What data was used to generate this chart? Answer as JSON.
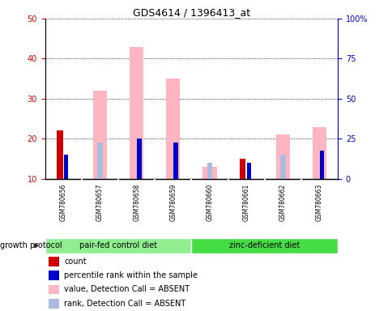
{
  "title": "GDS4614 / 1396413_at",
  "samples": [
    "GSM780656",
    "GSM780657",
    "GSM780658",
    "GSM780659",
    "GSM780660",
    "GSM780661",
    "GSM780662",
    "GSM780663"
  ],
  "group1_label": "pair-fed control diet",
  "group2_label": "zinc-deficient diet",
  "group1_color": "#90EE90",
  "group2_color": "#44DD44",
  "count_values": [
    22,
    0,
    0,
    0,
    0,
    15,
    0,
    0
  ],
  "rank_values": [
    16,
    0,
    20,
    19,
    0,
    14,
    0,
    17
  ],
  "value_absent": [
    0,
    32,
    43,
    35,
    13,
    0,
    21,
    23
  ],
  "rank_absent": [
    0,
    19,
    0,
    0,
    14,
    0,
    16,
    0
  ],
  "ylim_left": [
    10,
    50
  ],
  "ylim_right": [
    0,
    100
  ],
  "yticks_left": [
    10,
    20,
    30,
    40,
    50
  ],
  "yticks_right": [
    0,
    25,
    50,
    75,
    100
  ],
  "ytick_labels_right": [
    "0",
    "25",
    "50",
    "75",
    "100%"
  ],
  "color_count": "#CC0000",
  "color_rank": "#0000CC",
  "color_value_absent": "#FFB6C1",
  "color_rank_absent": "#AABBDD",
  "protocol_label": "growth protocol",
  "legend_items": [
    {
      "color": "#CC0000",
      "label": "count"
    },
    {
      "color": "#0000CC",
      "label": "percentile rank within the sample"
    },
    {
      "color": "#FFB6C1",
      "label": "value, Detection Call = ABSENT"
    },
    {
      "color": "#AABBDD",
      "label": "rank, Detection Call = ABSENT"
    }
  ]
}
